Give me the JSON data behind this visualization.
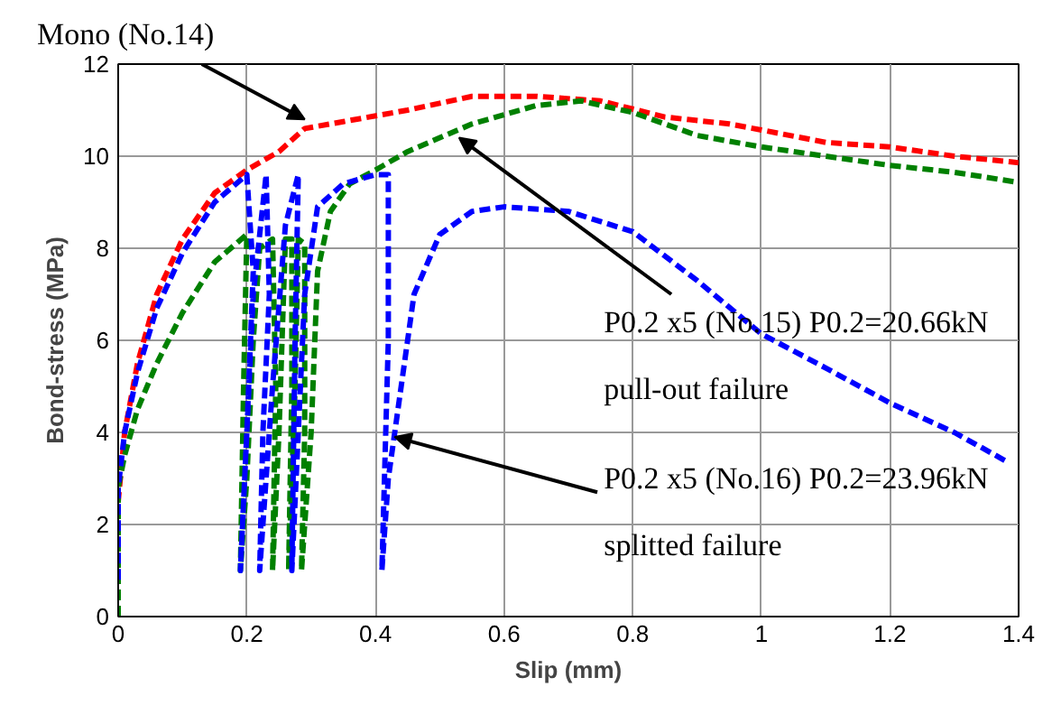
{
  "chart_data": {
    "type": "line",
    "xlabel": "Slip (mm)",
    "ylabel": "Bond-stress (MPa)",
    "xlim": [
      0,
      1.4
    ],
    "xticks": [
      0,
      0.2,
      0.4,
      0.6,
      0.8,
      1,
      1.2,
      1.4
    ],
    "ylim": [
      0,
      12
    ],
    "yticks": [
      0,
      2,
      4,
      6,
      8,
      10,
      12
    ],
    "grid": true,
    "marker": "none",
    "line_style": "dashed",
    "series": [
      {
        "color": "#ff0000",
        "x": [
          0,
          0,
          0.01,
          0.03,
          0.06,
          0.1,
          0.15,
          0.2,
          0.25,
          0.29,
          0.35,
          0.45,
          0.55,
          0.65,
          0.75,
          0.85,
          0.95,
          1.0,
          1.1,
          1.2,
          1.3,
          1.4
        ],
        "values": [
          0,
          2.5,
          4,
          5.5,
          7,
          8.2,
          9.2,
          9.7,
          10.1,
          10.6,
          10.75,
          11.0,
          11.3,
          11.3,
          11.2,
          10.85,
          10.7,
          10.57,
          10.3,
          10.2,
          10.0,
          9.86
        ]
      },
      {
        "color": "#008000",
        "x": [
          0,
          0,
          0.01,
          0.03,
          0.06,
          0.1,
          0.15,
          0.2,
          0.195,
          0.19,
          0.2,
          0.21,
          0.22,
          0.24,
          0.245,
          0.24,
          0.25,
          0.26,
          0.27,
          0.27,
          0.265,
          0.275,
          0.28,
          0.29,
          0.29,
          0.285,
          0.3,
          0.31,
          0.33,
          0.36,
          0.4,
          0.45,
          0.5,
          0.55,
          0.6,
          0.65,
          0.72,
          0.8,
          0.9,
          1.0,
          1.1,
          1.2,
          1.3,
          1.4
        ],
        "values": [
          0,
          2.8,
          3.5,
          4.5,
          5.5,
          6.6,
          7.7,
          8.3,
          5,
          1.0,
          3,
          6,
          8.0,
          8.2,
          5,
          1.0,
          4,
          8.2,
          8.2,
          5,
          1.0,
          5,
          8.2,
          8.1,
          4,
          1.0,
          4,
          7.5,
          8.8,
          9.4,
          9.7,
          10.1,
          10.4,
          10.7,
          10.9,
          11.1,
          11.2,
          10.95,
          10.45,
          10.2,
          10.0,
          9.8,
          9.65,
          9.43
        ]
      },
      {
        "color": "#0000ff",
        "x": [
          0,
          0,
          0.01,
          0.03,
          0.06,
          0.1,
          0.15,
          0.2,
          0.21,
          0.2,
          0.19,
          0.2,
          0.21,
          0.23,
          0.235,
          0.225,
          0.22,
          0.24,
          0.26,
          0.28,
          0.275,
          0.27,
          0.28,
          0.29,
          0.31,
          0.35,
          0.4,
          0.42,
          0.42,
          0.41,
          0.42,
          0.44,
          0.46,
          0.5,
          0.55,
          0.6,
          0.7,
          0.8,
          0.9,
          1.0,
          1.1,
          1.2,
          1.3,
          1.385
        ],
        "values": [
          0.8,
          2.8,
          4,
          5.3,
          6.7,
          7.9,
          9.0,
          9.6,
          7.5,
          4,
          1.0,
          4,
          7,
          9.6,
          7,
          4,
          1.0,
          5,
          8.5,
          9.6,
          6,
          1.0,
          4,
          7,
          8.9,
          9.4,
          9.6,
          9.6,
          6,
          1.0,
          3,
          5,
          7,
          8.3,
          8.8,
          8.9,
          8.8,
          8.36,
          7.3,
          6.14,
          5.4,
          4.64,
          4.0,
          3.34
        ]
      }
    ],
    "annotations": [
      {
        "text": "Mono (No.14)",
        "x": 0.29,
        "y": 10.8
      },
      {
        "text": "P0.2 x5 (No.15) P0.2=20.66kN\npull-out failure",
        "x": 0.53,
        "y": 10.4
      },
      {
        "text": "P0.2 x5 (No.16) P0.2=23.96kN\nsplitted failure",
        "x": 0.43,
        "y": 3.9
      }
    ]
  }
}
